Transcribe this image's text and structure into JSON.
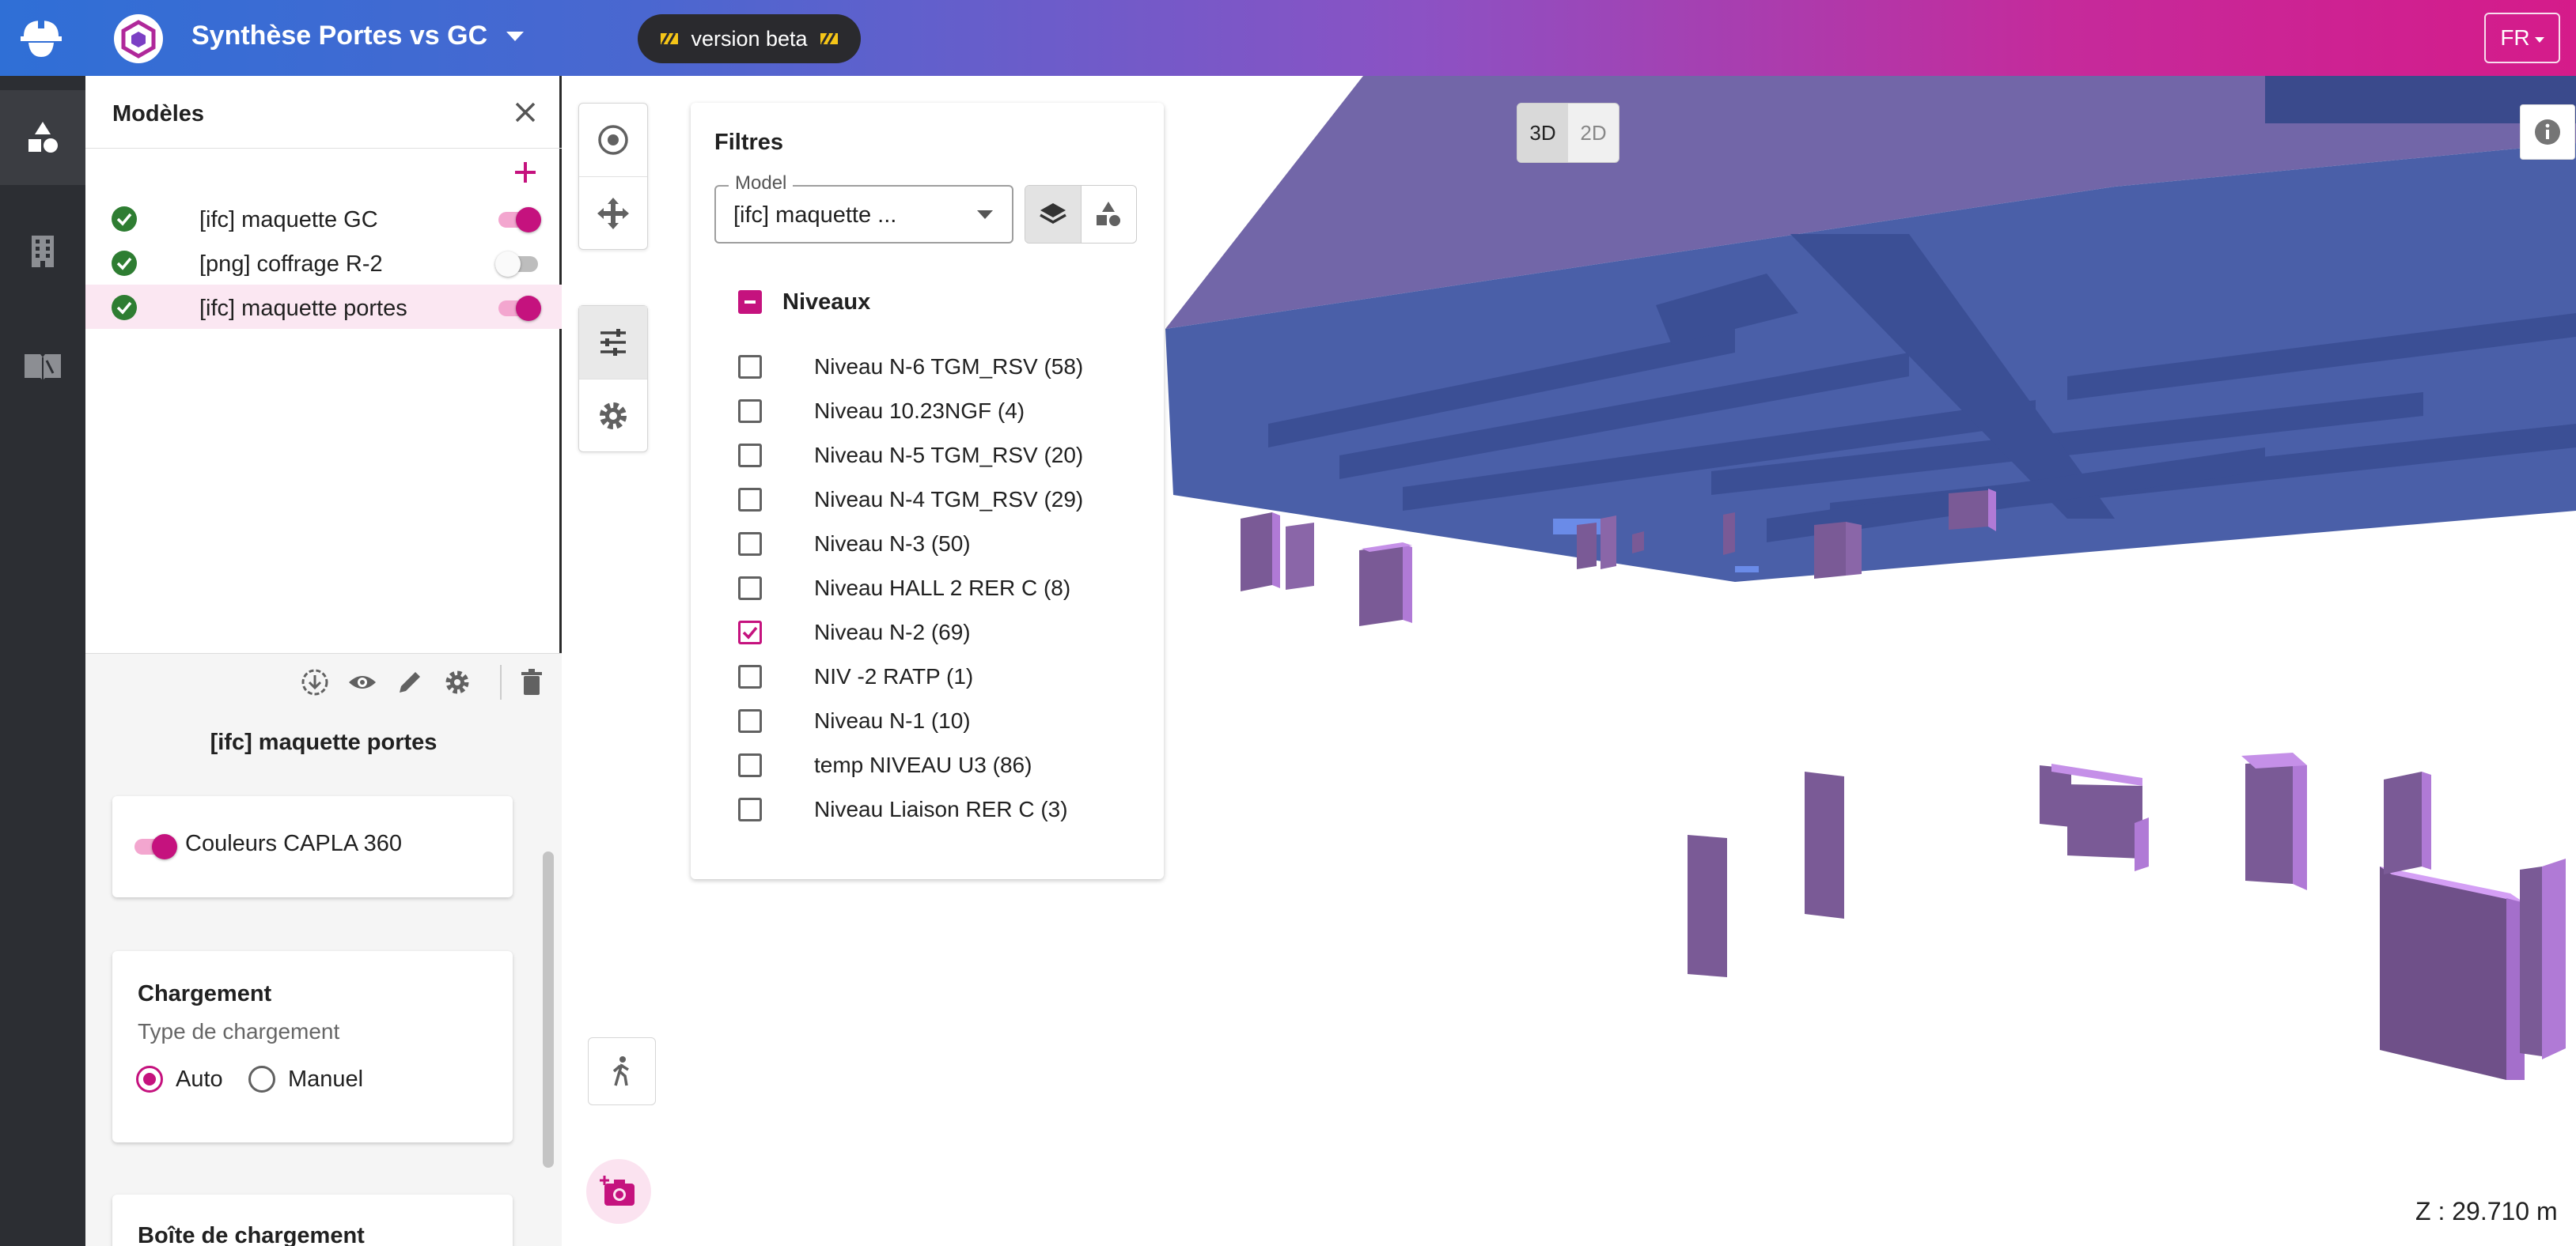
{
  "header": {
    "title": "Synthèse Portes vs GC",
    "beta_label": "version beta",
    "lang": "FR"
  },
  "rail": {
    "items": [
      "shapes-icon",
      "building-icon",
      "book-icon"
    ]
  },
  "models_panel": {
    "title": "Modèles",
    "models": [
      {
        "label": "[ifc] maquette GC",
        "status": "loaded",
        "visible": true
      },
      {
        "label": "[png] coffrage R-2",
        "status": "loaded",
        "visible": false
      },
      {
        "label": "[ifc] maquette portes",
        "status": "loaded",
        "visible": true
      }
    ],
    "selected_name": "[ifc] maquette portes",
    "colors_card": {
      "label": "Couleurs CAPLA 360",
      "enabled": true
    },
    "loading_card": {
      "title": "Chargement",
      "subtitle": "Type de chargement",
      "options": [
        "Auto",
        "Manuel"
      ],
      "selected": "Auto"
    },
    "box_card": {
      "title": "Boîte de chargement"
    }
  },
  "viewer": {
    "view_modes": [
      "3D",
      "2D"
    ],
    "active_view_mode": "3D",
    "z_readout": "Z : 29.710 m"
  },
  "filters": {
    "title": "Filtres",
    "model_legend": "Model",
    "model_value": "[ifc] maquette ...",
    "group_label": "Niveaux",
    "levels": [
      {
        "label": "Niveau N-6 TGM_RSV (58)",
        "checked": false
      },
      {
        "label": "Niveau 10.23NGF (4)",
        "checked": false
      },
      {
        "label": "Niveau N-5 TGM_RSV (20)",
        "checked": false
      },
      {
        "label": "Niveau N-4 TGM_RSV (29)",
        "checked": false
      },
      {
        "label": "Niveau N-3 (50)",
        "checked": false
      },
      {
        "label": "Niveau HALL 2 RER C (8)",
        "checked": false
      },
      {
        "label": "Niveau N-2 (69)",
        "checked": true
      },
      {
        "label": "NIV -2 RATP (1)",
        "checked": false
      },
      {
        "label": "Niveau N-1 (10)",
        "checked": false
      },
      {
        "label": "temp NIVEAU U3 (86)",
        "checked": false
      },
      {
        "label": "Niveau Liaison RER C (3)",
        "checked": false
      }
    ]
  },
  "colors": {
    "accent": "#c5127e",
    "rail": "#2c2e33",
    "slab": "#4a5fa8",
    "doors": "#8a5aa6"
  }
}
